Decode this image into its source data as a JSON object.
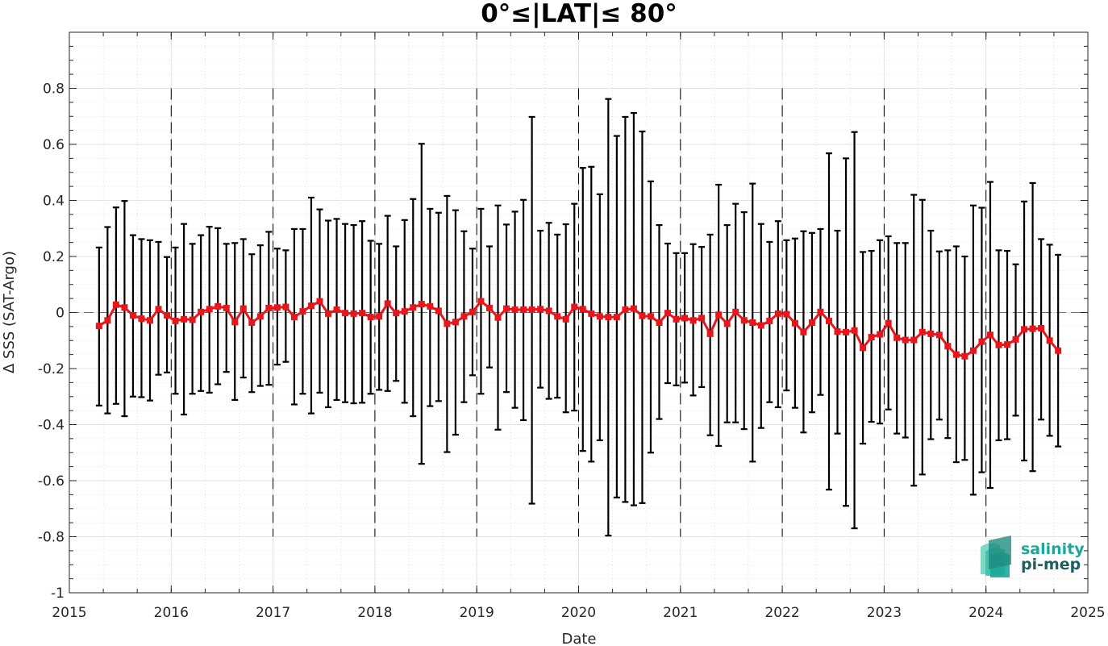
{
  "chart_data": {
    "type": "line",
    "title": "0°≤|LAT|≤ 80°",
    "xlabel": "Date",
    "ylabel": "Δ SSS (SAT-Argo)",
    "xlim": [
      2015,
      2025
    ],
    "ylim": [
      -1,
      1
    ],
    "x_ticks": [
      "2015",
      "2016",
      "2017",
      "2018",
      "2019",
      "2020",
      "2021",
      "2022",
      "2023",
      "2024",
      "2025"
    ],
    "y_ticks": [
      "-1",
      "-0.8",
      "-0.6",
      "-0.4",
      "-0.2",
      "0",
      "0.2",
      "0.4",
      "0.6",
      "0.8"
    ],
    "y_tick_values": [
      -1,
      -0.8,
      -0.6,
      -0.4,
      -0.2,
      0,
      0.2,
      0.4,
      0.6,
      0.8
    ],
    "grid": true,
    "year_markers": [
      2016,
      2017,
      2018,
      2019,
      2020,
      2021,
      2022,
      2023,
      2024
    ],
    "series": [
      {
        "color": "#e8161b",
        "errorbar_color": "#000000",
        "start_year": 2015,
        "start_month": 4,
        "mean": [
          -0.048,
          -0.028,
          0.028,
          0.018,
          -0.01,
          -0.022,
          -0.028,
          0.012,
          -0.01,
          -0.03,
          -0.024,
          -0.026,
          0.002,
          0.012,
          0.022,
          0.016,
          -0.034,
          0.014,
          -0.036,
          -0.014,
          0.016,
          0.018,
          0.02,
          -0.016,
          0.004,
          0.024,
          0.04,
          -0.004,
          0.01,
          -0.002,
          -0.004,
          -0.002,
          -0.016,
          -0.014,
          0.032,
          -0.002,
          0.004,
          0.018,
          0.03,
          0.022,
          0.006,
          -0.04,
          -0.034,
          -0.014,
          0.002,
          0.04,
          0.016,
          -0.018,
          0.014,
          0.01,
          0.01,
          0.01,
          0.012,
          0.006,
          -0.014,
          -0.024,
          0.02,
          0.012,
          -0.004,
          -0.014,
          -0.016,
          -0.016,
          0.01,
          0.014,
          -0.012,
          -0.014,
          -0.036,
          -0.002,
          -0.024,
          -0.02,
          -0.028,
          -0.02,
          -0.076,
          -0.008,
          -0.04,
          0.002,
          -0.028,
          -0.036,
          -0.046,
          -0.03,
          -0.004,
          -0.006,
          -0.038,
          -0.07,
          -0.036,
          0.002,
          -0.03,
          -0.068,
          -0.07,
          -0.064,
          -0.126,
          -0.088,
          -0.078,
          -0.038,
          -0.09,
          -0.098,
          -0.098,
          -0.07,
          -0.076,
          -0.08,
          -0.12,
          -0.15,
          -0.156,
          -0.136,
          -0.104,
          -0.08,
          -0.116,
          -0.114,
          -0.096,
          -0.06,
          -0.058,
          -0.056,
          -0.1,
          -0.136
        ],
        "upper": [
          0.232,
          0.305,
          0.375,
          0.398,
          0.276,
          0.262,
          0.258,
          0.252,
          0.198,
          0.232,
          0.316,
          0.245,
          0.276,
          0.306,
          0.301,
          0.245,
          0.248,
          0.262,
          0.208,
          0.24,
          0.288,
          0.228,
          0.222,
          0.298,
          0.298,
          0.41,
          0.368,
          0.328,
          0.334,
          0.316,
          0.312,
          0.326,
          0.256,
          0.245,
          0.345,
          0.236,
          0.33,
          0.405,
          0.602,
          0.37,
          0.356,
          0.416,
          0.365,
          0.29,
          0.228,
          0.37,
          0.236,
          0.382,
          0.314,
          0.36,
          0.402,
          0.698,
          0.292,
          0.32,
          0.278,
          0.315,
          0.388,
          0.516,
          0.52,
          0.422,
          0.762,
          0.63,
          0.698,
          0.712,
          0.646,
          0.468,
          0.312,
          0.246,
          0.212,
          0.212,
          0.244,
          0.234,
          0.278,
          0.456,
          0.312,
          0.388,
          0.358,
          0.46,
          0.316,
          0.252,
          0.326,
          0.258,
          0.264,
          0.29,
          0.284,
          0.298,
          0.568,
          0.292,
          0.55,
          0.644,
          0.216,
          0.22,
          0.258,
          0.272,
          0.248,
          0.248,
          0.42,
          0.402,
          0.292,
          0.218,
          0.222,
          0.236,
          0.2,
          0.382,
          0.374,
          0.466,
          0.222,
          0.22,
          0.172,
          0.396,
          0.462,
          0.262,
          0.242,
          0.206
        ],
        "lower": [
          -0.332,
          -0.36,
          -0.326,
          -0.37,
          -0.3,
          -0.302,
          -0.314,
          -0.222,
          -0.214,
          -0.29,
          -0.364,
          -0.29,
          -0.28,
          -0.286,
          -0.256,
          -0.212,
          -0.312,
          -0.232,
          -0.284,
          -0.262,
          -0.258,
          -0.186,
          -0.176,
          -0.328,
          -0.29,
          -0.36,
          -0.286,
          -0.338,
          -0.312,
          -0.32,
          -0.324,
          -0.322,
          -0.29,
          -0.276,
          -0.28,
          -0.244,
          -0.322,
          -0.37,
          -0.54,
          -0.334,
          -0.316,
          -0.498,
          -0.436,
          -0.32,
          -0.224,
          -0.29,
          -0.196,
          -0.418,
          -0.284,
          -0.34,
          -0.384,
          -0.682,
          -0.268,
          -0.308,
          -0.304,
          -0.356,
          -0.35,
          -0.494,
          -0.532,
          -0.456,
          -0.796,
          -0.66,
          -0.676,
          -0.688,
          -0.68,
          -0.5,
          -0.38,
          -0.252,
          -0.26,
          -0.25,
          -0.296,
          -0.266,
          -0.438,
          -0.476,
          -0.392,
          -0.392,
          -0.416,
          -0.532,
          -0.412,
          -0.32,
          -0.338,
          -0.278,
          -0.34,
          -0.428,
          -0.356,
          -0.294,
          -0.632,
          -0.432,
          -0.69,
          -0.77,
          -0.468,
          -0.39,
          -0.396,
          -0.346,
          -0.432,
          -0.446,
          -0.618,
          -0.578,
          -0.452,
          -0.382,
          -0.448,
          -0.534,
          -0.526,
          -0.65,
          -0.57,
          -0.626,
          -0.456,
          -0.452,
          -0.368,
          -0.528,
          -0.566,
          -0.382,
          -0.44,
          -0.478
        ]
      }
    ]
  },
  "logo": {
    "line1": "salinity",
    "line2": "pi-mep",
    "color1": "#1aa89a",
    "color2": "#1f5e5e"
  }
}
